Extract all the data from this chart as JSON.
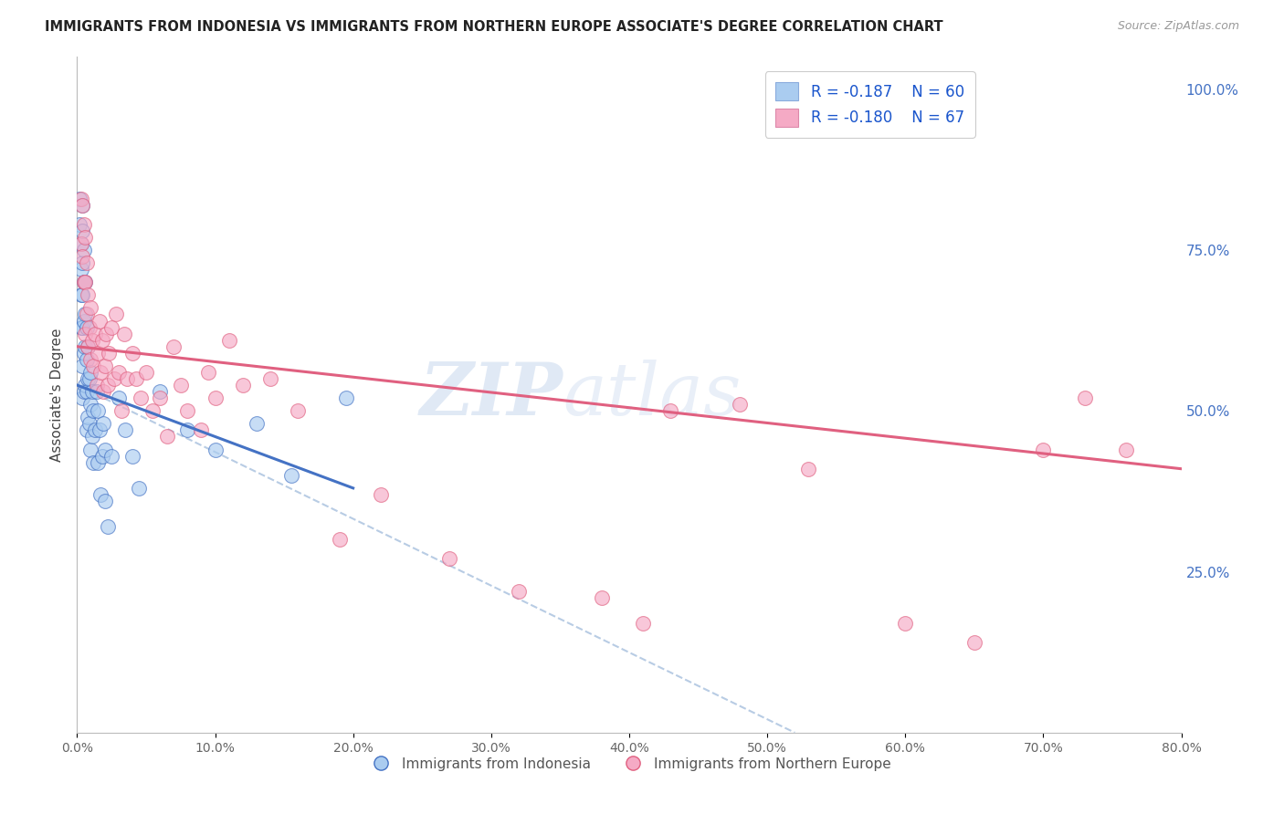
{
  "title": "IMMIGRANTS FROM INDONESIA VS IMMIGRANTS FROM NORTHERN EUROPE ASSOCIATE'S DEGREE CORRELATION CHART",
  "source": "Source: ZipAtlas.com",
  "ylabel": "Associate's Degree",
  "right_yticks": [
    "100.0%",
    "75.0%",
    "50.0%",
    "25.0%"
  ],
  "right_ytick_vals": [
    1.0,
    0.75,
    0.5,
    0.25
  ],
  "legend_r1": "-0.187",
  "legend_n1": "60",
  "legend_r2": "-0.180",
  "legend_n2": "67",
  "label1": "Immigrants from Indonesia",
  "label2": "Immigrants from Northern Europe",
  "color1": "#aaccf0",
  "color2": "#f5aac5",
  "line_color1": "#4472c4",
  "line_color2": "#e06080",
  "dashed_color": "#b8cce4",
  "watermark_top": "ZIP",
  "watermark_bot": "atlas",
  "bg_color": "#ffffff",
  "grid_color": "#d8d8e0",
  "xlim": [
    0.0,
    0.8
  ],
  "ylim": [
    0.0,
    1.05
  ],
  "blue_line_x0": 0.0,
  "blue_line_x1": 0.2,
  "blue_line_y0": 0.54,
  "blue_line_y1": 0.38,
  "pink_line_x0": 0.0,
  "pink_line_x1": 0.8,
  "pink_line_y0": 0.6,
  "pink_line_y1": 0.41,
  "dashed_line_x0": 0.0,
  "dashed_line_x1": 0.52,
  "dashed_line_y0": 0.54,
  "dashed_line_y1": 0.0,
  "scatter1_x": [
    0.002,
    0.002,
    0.003,
    0.003,
    0.003,
    0.003,
    0.004,
    0.004,
    0.004,
    0.004,
    0.004,
    0.004,
    0.004,
    0.005,
    0.005,
    0.005,
    0.005,
    0.005,
    0.006,
    0.006,
    0.006,
    0.006,
    0.007,
    0.007,
    0.007,
    0.007,
    0.008,
    0.008,
    0.008,
    0.009,
    0.009,
    0.01,
    0.01,
    0.01,
    0.011,
    0.011,
    0.012,
    0.012,
    0.013,
    0.014,
    0.015,
    0.015,
    0.016,
    0.017,
    0.018,
    0.019,
    0.02,
    0.02,
    0.022,
    0.025,
    0.03,
    0.035,
    0.04,
    0.045,
    0.06,
    0.08,
    0.1,
    0.13,
    0.155,
    0.195
  ],
  "scatter1_y": [
    0.83,
    0.79,
    0.76,
    0.72,
    0.68,
    0.63,
    0.82,
    0.78,
    0.73,
    0.68,
    0.63,
    0.57,
    0.52,
    0.75,
    0.7,
    0.64,
    0.59,
    0.53,
    0.7,
    0.65,
    0.6,
    0.54,
    0.63,
    0.58,
    0.53,
    0.47,
    0.6,
    0.55,
    0.49,
    0.55,
    0.48,
    0.56,
    0.51,
    0.44,
    0.53,
    0.46,
    0.5,
    0.42,
    0.47,
    0.53,
    0.5,
    0.42,
    0.47,
    0.37,
    0.43,
    0.48,
    0.44,
    0.36,
    0.32,
    0.43,
    0.52,
    0.47,
    0.43,
    0.38,
    0.53,
    0.47,
    0.44,
    0.48,
    0.4,
    0.52
  ],
  "scatter2_x": [
    0.003,
    0.003,
    0.004,
    0.004,
    0.005,
    0.005,
    0.006,
    0.006,
    0.006,
    0.007,
    0.007,
    0.008,
    0.008,
    0.009,
    0.01,
    0.01,
    0.011,
    0.012,
    0.013,
    0.014,
    0.015,
    0.016,
    0.017,
    0.018,
    0.019,
    0.02,
    0.021,
    0.022,
    0.023,
    0.025,
    0.027,
    0.028,
    0.03,
    0.032,
    0.034,
    0.036,
    0.04,
    0.043,
    0.046,
    0.05,
    0.055,
    0.06,
    0.065,
    0.07,
    0.075,
    0.08,
    0.09,
    0.095,
    0.1,
    0.11,
    0.12,
    0.14,
    0.16,
    0.19,
    0.22,
    0.27,
    0.32,
    0.38,
    0.41,
    0.43,
    0.48,
    0.53,
    0.6,
    0.65,
    0.7,
    0.73,
    0.76
  ],
  "scatter2_y": [
    0.83,
    0.76,
    0.82,
    0.74,
    0.79,
    0.7,
    0.77,
    0.7,
    0.62,
    0.73,
    0.65,
    0.68,
    0.6,
    0.63,
    0.66,
    0.58,
    0.61,
    0.57,
    0.62,
    0.54,
    0.59,
    0.64,
    0.56,
    0.61,
    0.53,
    0.57,
    0.62,
    0.54,
    0.59,
    0.63,
    0.55,
    0.65,
    0.56,
    0.5,
    0.62,
    0.55,
    0.59,
    0.55,
    0.52,
    0.56,
    0.5,
    0.52,
    0.46,
    0.6,
    0.54,
    0.5,
    0.47,
    0.56,
    0.52,
    0.61,
    0.54,
    0.55,
    0.5,
    0.3,
    0.37,
    0.27,
    0.22,
    0.21,
    0.17,
    0.5,
    0.51,
    0.41,
    0.17,
    0.14,
    0.44,
    0.52,
    0.44
  ]
}
